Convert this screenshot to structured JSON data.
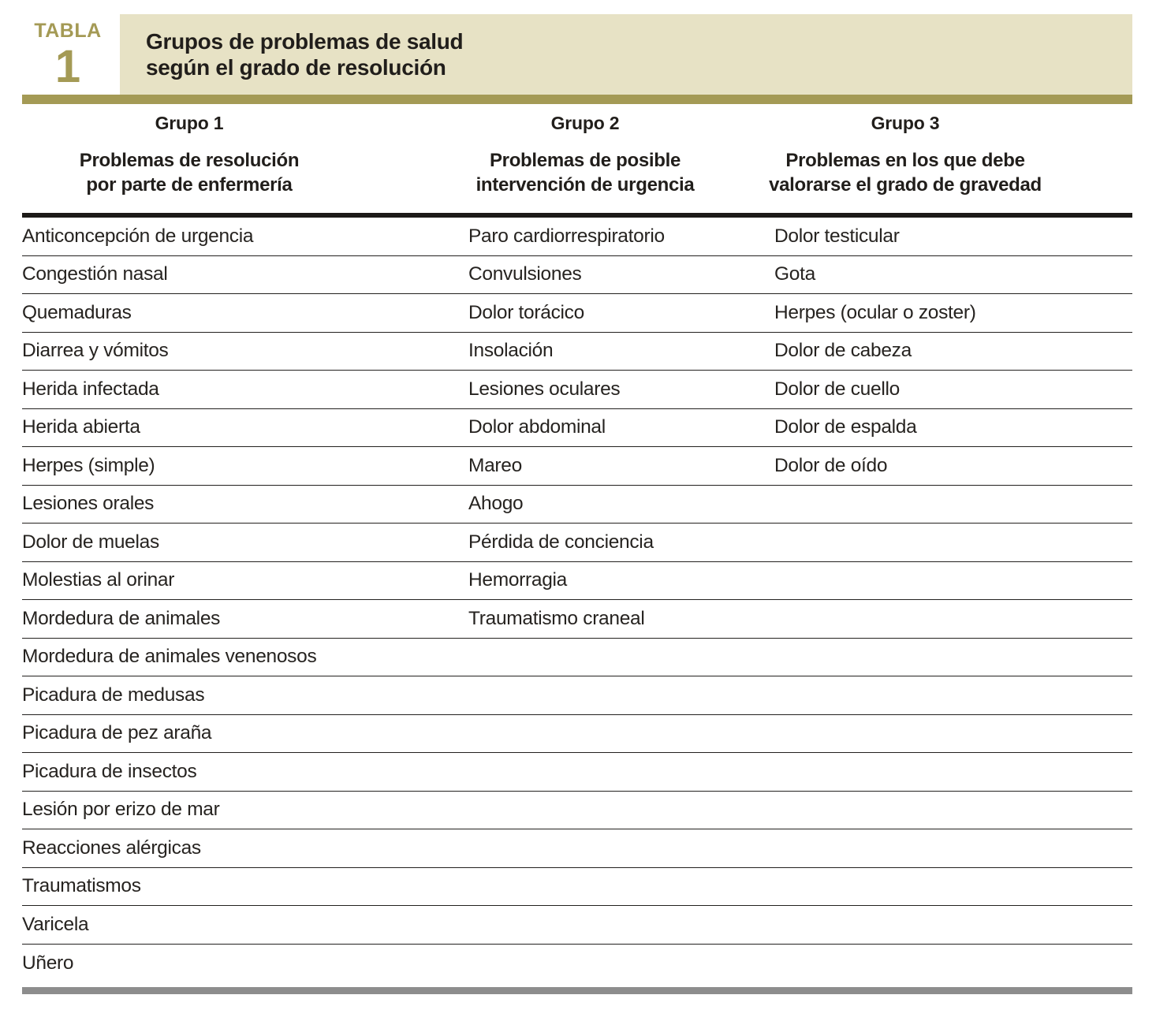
{
  "table_label": {
    "word": "TABLA",
    "number": "1"
  },
  "title": {
    "line1": "Grupos de problemas de salud",
    "line2": "según el grado de resolución"
  },
  "groups": [
    {
      "name": "Grupo 1",
      "subtitle_line1": "Problemas de resolución",
      "subtitle_line2": "por parte de enfermería"
    },
    {
      "name": "Grupo 2",
      "subtitle_line1": "Problemas de posible",
      "subtitle_line2": "intervención de urgencia"
    },
    {
      "name": "Grupo 3",
      "subtitle_line1": "Problemas en los que debe",
      "subtitle_line2": "valorarse el grado de gravedad"
    }
  ],
  "columns": [
    {
      "group": "Grupo 1",
      "items": [
        "Anticoncepción de urgencia",
        "Congestión nasal",
        "Quemaduras",
        "Diarrea y vómitos",
        "Herida infectada",
        "Herida abierta",
        "Herpes (simple)",
        "Lesiones orales",
        "Dolor de muelas",
        "Molestias al orinar",
        "Mordedura de animales",
        "Mordedura de animales venenosos",
        "Picadura de medusas",
        "Picadura de pez araña",
        "Picadura de insectos",
        "Lesión por erizo de mar",
        "Reacciones alérgicas",
        "Traumatismos",
        "Varicela",
        "Uñero"
      ]
    },
    {
      "group": "Grupo 2",
      "items": [
        "Paro cardiorrespiratorio",
        "Convulsiones",
        "Dolor torácico",
        "Insolación",
        "Lesiones oculares",
        "Dolor abdominal",
        "Mareo",
        "Ahogo",
        "Pérdida de conciencia",
        "Hemorragia",
        "Traumatismo craneal"
      ]
    },
    {
      "group": "Grupo 3",
      "items": [
        "Dolor testicular",
        "Gota",
        "Herpes (ocular o zoster)",
        "Dolor de cabeza",
        "Dolor de cuello",
        "Dolor de espalda",
        "Dolor de oído"
      ]
    }
  ],
  "colors": {
    "accent_olive": "#a49a55",
    "title_background": "#e7e2c5",
    "text_black": "#262320",
    "rule_black": "#1c1a18",
    "bottom_bar_gray": "#8d8d8d"
  }
}
